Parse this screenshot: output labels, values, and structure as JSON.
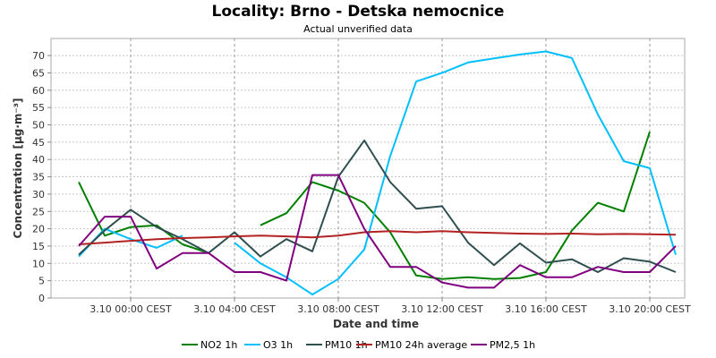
{
  "chart_data": {
    "type": "line",
    "title": "Locality: Brno - Detska nemocnice",
    "subtitle": "Actual unverified data",
    "xlabel": "Date and time",
    "ylabel": "Concentration [µg·m⁻³]",
    "ylim": [
      0,
      75
    ],
    "yticks": [
      0,
      5,
      10,
      15,
      20,
      25,
      30,
      35,
      40,
      45,
      50,
      55,
      60,
      65,
      70
    ],
    "x_hours": [
      -2,
      -1,
      0,
      1,
      2,
      3,
      4,
      5,
      6,
      7,
      8,
      9,
      10,
      11,
      12,
      13,
      14,
      15,
      16,
      17,
      18,
      19,
      20,
      21
    ],
    "xticks": [
      {
        "hour": 0,
        "label": "3.10 00:00 CEST"
      },
      {
        "hour": 4,
        "label": "3.10 04:00 CEST"
      },
      {
        "hour": 8,
        "label": "3.10 08:00 CEST"
      },
      {
        "hour": 12,
        "label": "3.10 12:00 CEST"
      },
      {
        "hour": 16,
        "label": "3.10 16:00 CEST"
      },
      {
        "hour": 20,
        "label": "3.10 20:00 CEST"
      }
    ],
    "grid": true,
    "legend_position": "bottom",
    "series": [
      {
        "name": "NO2 1h",
        "color": "#008000",
        "values": [
          33.5,
          18,
          20.5,
          21,
          15.5,
          13,
          null,
          21,
          24.5,
          33.5,
          31,
          27.5,
          19,
          6.5,
          5.5,
          6,
          5.5,
          5.8,
          7.5,
          19.5,
          27.5,
          25,
          48,
          null
        ]
      },
      {
        "name": "O3 1h",
        "color": "#00bfff",
        "values": [
          12,
          20,
          17,
          14.5,
          18,
          null,
          16,
          10,
          6,
          1,
          5.5,
          14,
          41,
          62.5,
          65,
          68,
          69.2,
          70.3,
          71.2,
          69.3,
          53,
          39.5,
          37.5,
          12.5
        ]
      },
      {
        "name": "PM10 1h",
        "color": "#2f4f4f",
        "values": [
          12.5,
          19.5,
          25.5,
          20.5,
          17,
          13,
          19,
          12,
          17,
          13.5,
          35,
          45.5,
          33.5,
          25.8,
          26.5,
          16,
          9.5,
          15.8,
          10.2,
          11.2,
          7.5,
          11.5,
          10.5,
          7.5
        ]
      },
      {
        "name": "PM10 24h average",
        "color": "#b22222",
        "values": [
          15.5,
          16,
          16.5,
          17,
          17.3,
          17.5,
          17.8,
          18,
          17.8,
          17.5,
          18,
          19,
          19.3,
          19,
          19.3,
          19,
          18.8,
          18.6,
          18.5,
          18.6,
          18.4,
          18.5,
          18.4,
          18.3
        ]
      },
      {
        "name": "PM2,5 1h",
        "color": "#800080",
        "values": [
          15,
          23.5,
          23.5,
          8.5,
          13,
          13,
          7.5,
          7.5,
          5,
          35.5,
          35.5,
          20,
          9,
          9,
          4.5,
          3,
          3,
          9.5,
          6,
          6,
          9,
          7.5,
          7.5,
          15
        ]
      }
    ]
  }
}
